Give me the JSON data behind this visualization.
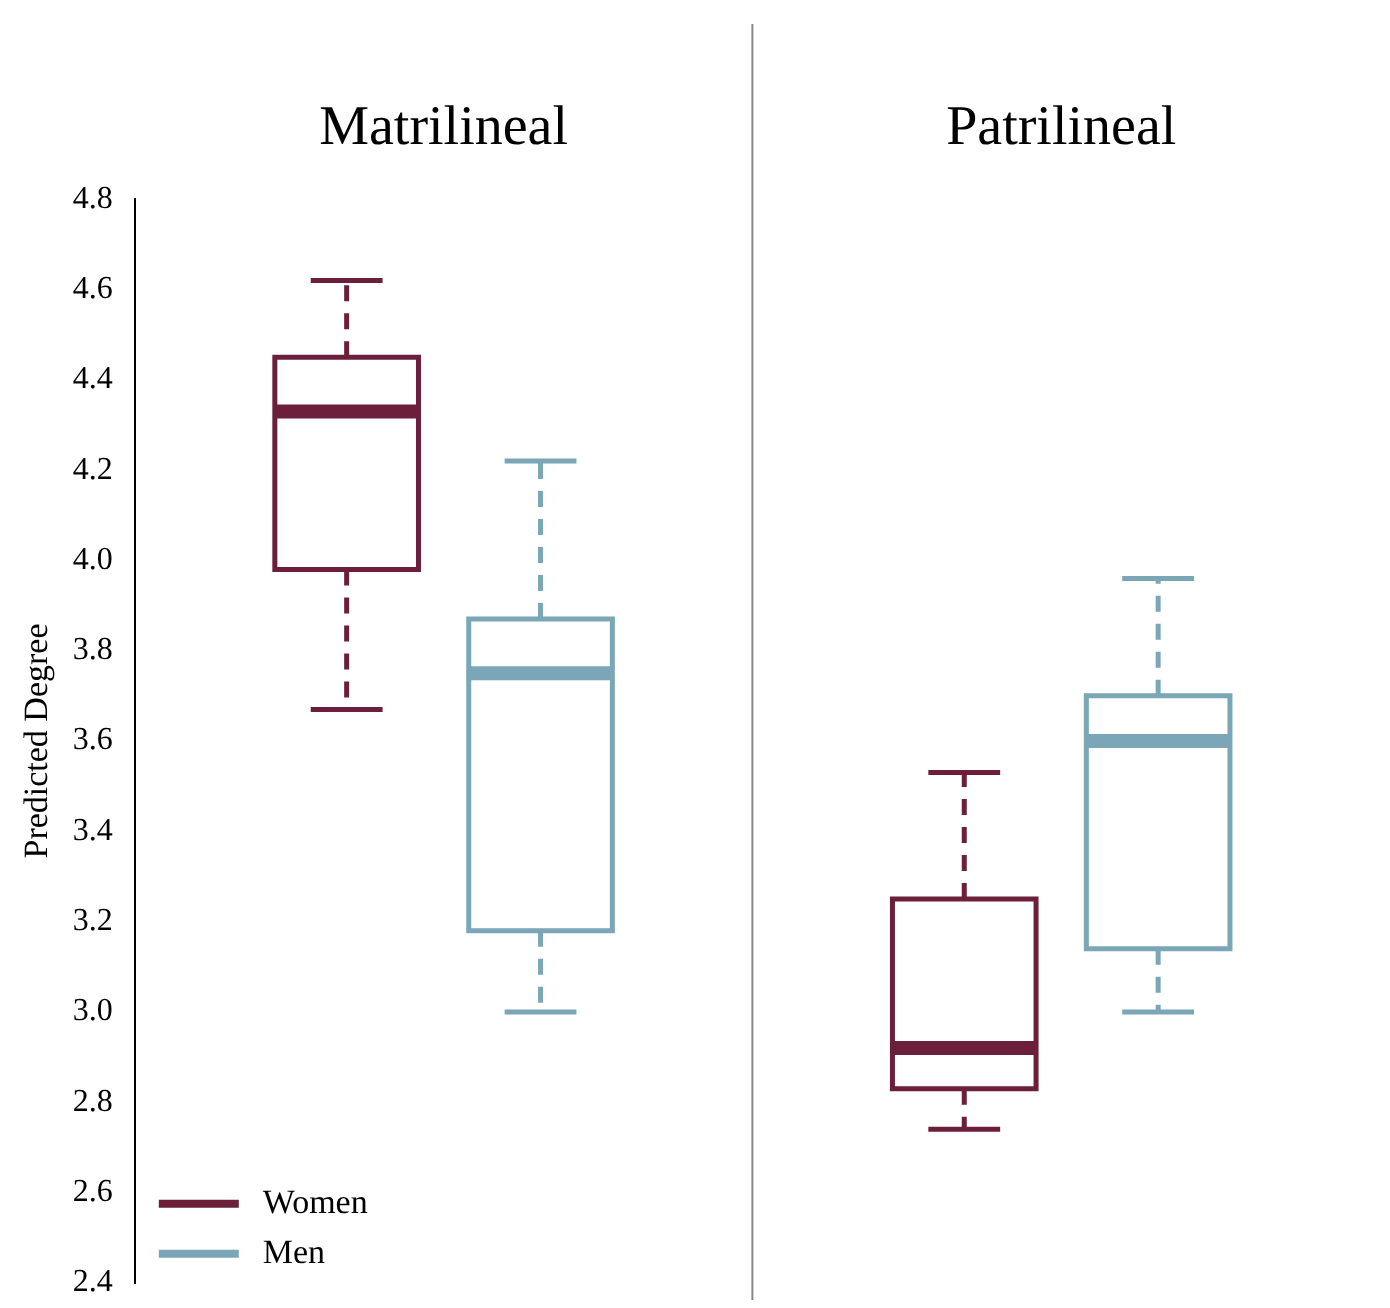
{
  "chart_data": {
    "type": "box",
    "categories": [
      "Matrilineal",
      "Patrilineal"
    ],
    "ylabel": "Predicted Degree",
    "ylim": [
      2.4,
      4.8
    ],
    "yticks": [
      2.4,
      2.6,
      2.8,
      {
        "value": 3,
        "label": "3.0"
      },
      3.2,
      3.4,
      3.6,
      3.8,
      {
        "value": 4,
        "label": "4.0"
      },
      4.2,
      4.4,
      4.6,
      4.8
    ],
    "legend": "bottom left",
    "series": [
      {
        "name": "Women",
        "color": "#6b1f3a",
        "boxes": [
          {
            "low": 3.67,
            "q1": 3.98,
            "median": 4.33,
            "q3": 4.45,
            "high": 4.62
          },
          {
            "low": 2.74,
            "q1": 2.83,
            "median": 2.92,
            "q3": 3.25,
            "high": 3.53
          }
        ]
      },
      {
        "name": "Men",
        "color": "#7aa6b8",
        "boxes": [
          {
            "low": 3.0,
            "q1": 3.18,
            "median": 3.75,
            "q3": 3.87,
            "high": 4.22
          },
          {
            "low": 3.0,
            "q1": 3.14,
            "median": 3.6,
            "q3": 3.7,
            "high": 3.96
          }
        ]
      }
    ]
  }
}
